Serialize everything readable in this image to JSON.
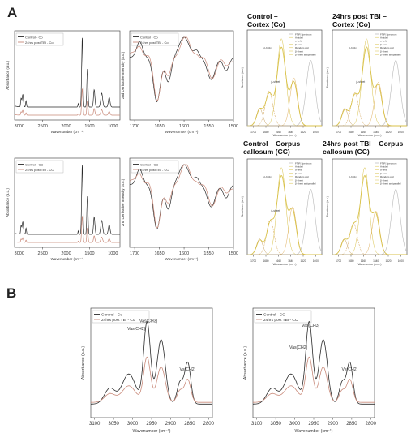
{
  "figure": {
    "panel_a_letter": "A",
    "panel_b_letter": "B",
    "colors": {
      "control": "#2b2b2b",
      "tbi": "#c98a7a",
      "fit": "#d9c24a",
      "fit2": "#b8b8b8",
      "axis": "#333333"
    }
  },
  "fit_titles": {
    "co_control_l1": "Control –",
    "co_control_l2": "Cortex (Co)",
    "co_tbi_l1": "24hrs post TBI –",
    "co_tbi_l2": "Cortex (Co)",
    "cc_control_l1": "Control – Corpus",
    "cc_control_l2": "callosum (CC)",
    "cc_tbi_l1": "24hrs post TBI – Corpus",
    "cc_tbi_l2": "callosum (CC)"
  },
  "fit_legend": [
    "FTIR Spectrum",
    "Amide I",
    "α-helix",
    "β-turn",
    "Random coil",
    "β-sheet",
    "β-sheet antiparallel"
  ],
  "chart_data": [
    {
      "id": "a_full_co",
      "type": "line",
      "legend": [
        "Control - Co",
        "24hrs post TBI - Co"
      ],
      "xlabel": "Wavenumber (cm⁻¹)",
      "ylabel": "Absorbance (a.u.)",
      "xlim": [
        3100,
        850
      ],
      "xticks": [
        3000,
        2500,
        2000,
        1500,
        1000
      ]
    },
    {
      "id": "a_deriv_co",
      "type": "line",
      "legend": [
        "Control - Co",
        "24hrs post TBI - Co"
      ],
      "xlabel": "Wavenumber (cm⁻¹)",
      "ylabel": "2nd Derivative Intensity (a.u.)",
      "xlim": [
        1710,
        1500
      ],
      "xticks": [
        1700,
        1650,
        1600,
        1550,
        1500
      ]
    },
    {
      "id": "a_fit_co_control",
      "type": "line",
      "xlabel": "Wavenumber (cm⁻¹)",
      "ylabel": "Absorbance (a.u.)",
      "xlim": [
        1710,
        1590
      ],
      "xticks": [
        1700,
        1680,
        1660,
        1640,
        1620,
        1600
      ],
      "annotations": [
        "α-helix",
        "β-sheet"
      ]
    },
    {
      "id": "a_fit_co_tbi",
      "type": "line",
      "xlabel": "Wavenumber (cm⁻¹)",
      "ylabel": "Absorbance (a.u.)",
      "xlim": [
        1710,
        1590
      ],
      "xticks": [
        1700,
        1680,
        1660,
        1640,
        1620,
        1600
      ],
      "annotations": [
        "α-helix",
        "β-sheet"
      ]
    },
    {
      "id": "a_full_cc",
      "type": "line",
      "legend": [
        "Control - CC",
        "24hrs post TBI - CC"
      ],
      "xlabel": "Wavenumber (cm⁻¹)",
      "ylabel": "Absorbance (a.u.)",
      "xlim": [
        3100,
        850
      ],
      "xticks": [
        3000,
        2500,
        2000,
        1500,
        1000
      ]
    },
    {
      "id": "a_deriv_cc",
      "type": "line",
      "legend": [
        "Control - CC",
        "24hrs post TBI - CC"
      ],
      "xlabel": "Wavenumber (cm⁻¹)",
      "ylabel": "2nd Derivative Intensity (a.u.)",
      "xlim": [
        1710,
        1500
      ],
      "xticks": [
        1700,
        1650,
        1600,
        1550,
        1500
      ]
    },
    {
      "id": "a_fit_cc_control",
      "type": "line",
      "xlabel": "Wavenumber (cm⁻¹)",
      "ylabel": "Absorbance (a.u.)",
      "xlim": [
        1710,
        1590
      ],
      "xticks": [
        1700,
        1680,
        1660,
        1640,
        1620,
        1600
      ],
      "annotations": [
        "α-helix",
        "β-sheet"
      ]
    },
    {
      "id": "a_fit_cc_tbi",
      "type": "line",
      "xlabel": "Wavenumber (cm⁻¹)",
      "ylabel": "Absorbance (a.u.)",
      "xlim": [
        1710,
        1590
      ],
      "xticks": [
        1700,
        1680,
        1660,
        1640,
        1620,
        1600
      ],
      "annotations": [
        "α-helix"
      ]
    },
    {
      "id": "b_co",
      "type": "line",
      "legend": [
        "Control - Co",
        "24hrs post TBI - Co"
      ],
      "xlabel": "Wavenumber (cm⁻¹)",
      "ylabel": "Absorbance (a.u.)",
      "xlim": [
        3110,
        2790
      ],
      "xticks": [
        3100,
        3050,
        3000,
        2950,
        2900,
        2850,
        2800
      ],
      "annotations": [
        "Vas(CH2)",
        "Vas(CH3)",
        "Vs(CH2)"
      ]
    },
    {
      "id": "b_cc",
      "type": "line",
      "legend": [
        "Control - CC",
        "24hrs post TBI - CC"
      ],
      "xlabel": "Wavenumber (cm⁻¹)",
      "ylabel": "Absorbance (a.u.)",
      "xlim": [
        3110,
        2790
      ],
      "xticks": [
        3100,
        3050,
        3000,
        2950,
        2900,
        2850,
        2800
      ],
      "annotations": [
        "Vas(CH2)",
        "Vas(CH3)",
        "Vs(CH2)"
      ]
    }
  ]
}
